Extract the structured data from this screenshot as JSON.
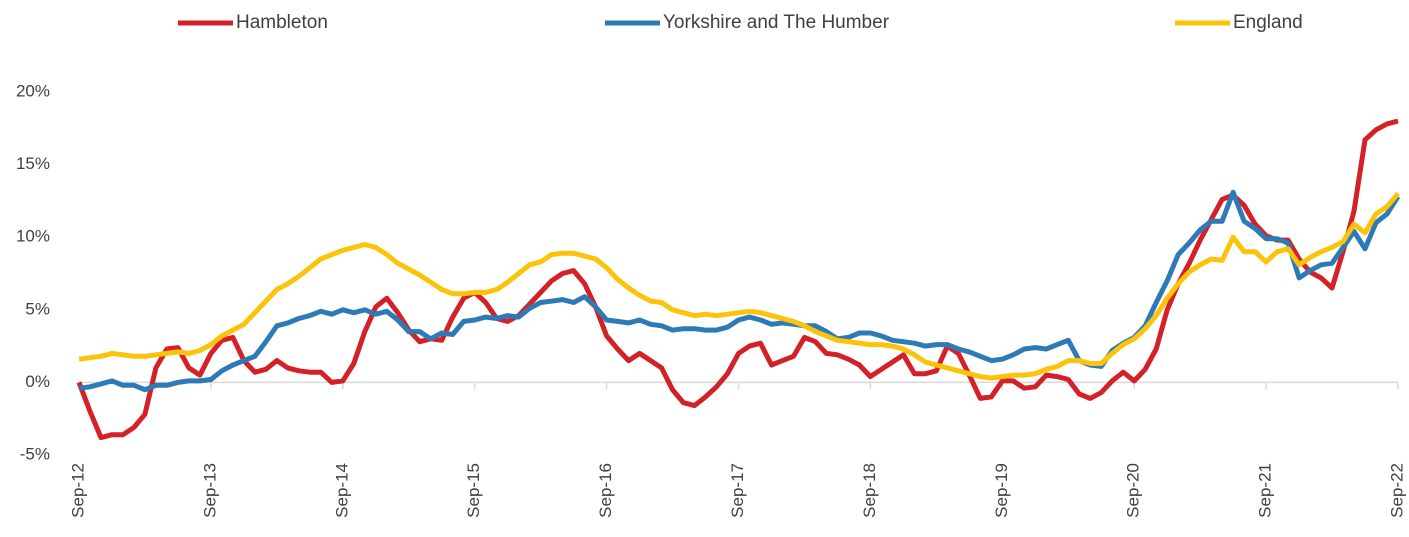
{
  "chart_data": {
    "type": "line",
    "categories": [
      "Sep-12",
      null,
      null,
      null,
      null,
      null,
      null,
      null,
      null,
      null,
      null,
      null,
      "Sep-13",
      null,
      null,
      null,
      null,
      null,
      null,
      null,
      null,
      null,
      null,
      null,
      "Sep-14",
      null,
      null,
      null,
      null,
      null,
      null,
      null,
      null,
      null,
      null,
      null,
      "Sep-15",
      null,
      null,
      null,
      null,
      null,
      null,
      null,
      null,
      null,
      null,
      null,
      "Sep-16",
      null,
      null,
      null,
      null,
      null,
      null,
      null,
      null,
      null,
      null,
      null,
      "Sep-17",
      null,
      null,
      null,
      null,
      null,
      null,
      null,
      null,
      null,
      null,
      null,
      "Sep-18",
      null,
      null,
      null,
      null,
      null,
      null,
      null,
      null,
      null,
      null,
      null,
      "Sep-19",
      null,
      null,
      null,
      null,
      null,
      null,
      null,
      null,
      null,
      null,
      null,
      "Sep-20",
      null,
      null,
      null,
      null,
      null,
      null,
      null,
      null,
      null,
      null,
      null,
      "Sep-21",
      null,
      null,
      null,
      null,
      null,
      null,
      null,
      null,
      null,
      null,
      null,
      "Sep-22"
    ],
    "series": [
      {
        "name": "Hambleton",
        "color": "#d42027",
        "values": [
          0,
          -2.0,
          -3.8,
          -3.6,
          -3.6,
          -3.1,
          -2.2,
          1.0,
          2.3,
          2.4,
          1.0,
          0.5,
          2.0,
          2.9,
          3.1,
          1.5,
          0.7,
          0.9,
          1.5,
          1.0,
          0.8,
          0.7,
          0.7,
          0.0,
          0.1,
          1.3,
          3.5,
          5.2,
          5.8,
          4.8,
          3.6,
          2.8,
          3.0,
          2.9,
          4.5,
          5.8,
          6.2,
          5.5,
          4.4,
          4.2,
          4.6,
          5.4,
          6.2,
          7.0,
          7.5,
          7.7,
          6.8,
          5.2,
          3.2,
          2.3,
          1.5,
          2.0,
          1.5,
          1.0,
          -0.5,
          -1.4,
          -1.6,
          -1.0,
          -0.3,
          0.6,
          2.0,
          2.5,
          2.7,
          1.2,
          1.5,
          1.8,
          3.1,
          2.8,
          2.0,
          1.9,
          1.6,
          1.2,
          0.4,
          0.9,
          1.4,
          1.9,
          0.6,
          0.6,
          0.8,
          2.5,
          2.0,
          0.5,
          -1.1,
          -1.0,
          0.1,
          0.1,
          -0.4,
          -0.3,
          0.5,
          0.4,
          0.2,
          -0.8,
          -1.1,
          -0.7,
          0.1,
          0.7,
          0.1,
          0.9,
          2.3,
          5.0,
          6.8,
          8.2,
          9.8,
          11.2,
          12.6,
          12.9,
          12.2,
          10.9,
          10.1,
          9.8,
          9.8,
          8.5,
          7.6,
          7.2,
          6.5,
          9.0,
          11.8,
          16.7,
          17.4,
          17.8,
          18.0
        ]
      },
      {
        "name": "Yorkshire and The Humber",
        "color": "#2e7ab6",
        "values": [
          -0.4,
          -0.3,
          -0.1,
          0.1,
          -0.2,
          -0.2,
          -0.5,
          -0.2,
          -0.2,
          0.0,
          0.1,
          0.1,
          0.2,
          0.8,
          1.2,
          1.5,
          1.8,
          2.8,
          3.9,
          4.1,
          4.4,
          4.6,
          4.9,
          4.7,
          5.0,
          4.8,
          5.0,
          4.7,
          4.9,
          4.3,
          3.5,
          3.5,
          3.0,
          3.4,
          3.3,
          4.2,
          4.3,
          4.5,
          4.4,
          4.6,
          4.5,
          5.1,
          5.5,
          5.6,
          5.7,
          5.5,
          5.9,
          5.2,
          4.3,
          4.2,
          4.1,
          4.3,
          4.0,
          3.9,
          3.6,
          3.7,
          3.7,
          3.6,
          3.6,
          3.8,
          4.3,
          4.5,
          4.3,
          4.0,
          4.1,
          4.0,
          3.9,
          3.9,
          3.5,
          3.0,
          3.1,
          3.4,
          3.4,
          3.2,
          2.9,
          2.8,
          2.7,
          2.5,
          2.6,
          2.6,
          2.3,
          2.1,
          1.8,
          1.5,
          1.6,
          1.9,
          2.3,
          2.4,
          2.3,
          2.6,
          2.9,
          1.5,
          1.2,
          1.1,
          2.2,
          2.7,
          3.1,
          3.9,
          5.5,
          7.0,
          8.8,
          9.6,
          10.5,
          11.1,
          11.1,
          13.1,
          11.1,
          10.6,
          9.9,
          9.9,
          9.6,
          7.2,
          7.7,
          8.1,
          8.2,
          9.3,
          10.4,
          9.2,
          11.0,
          11.6,
          12.8
        ]
      },
      {
        "name": "England",
        "color": "#fcc30b",
        "values": [
          1.6,
          1.7,
          1.8,
          2.0,
          1.9,
          1.8,
          1.8,
          1.9,
          2.0,
          2.1,
          2.0,
          2.2,
          2.6,
          3.2,
          3.6,
          4.0,
          4.8,
          5.6,
          6.4,
          6.8,
          7.3,
          7.9,
          8.5,
          8.8,
          9.1,
          9.3,
          9.5,
          9.3,
          8.8,
          8.2,
          7.8,
          7.4,
          6.9,
          6.4,
          6.1,
          6.1,
          6.2,
          6.2,
          6.4,
          6.9,
          7.5,
          8.1,
          8.3,
          8.8,
          8.9,
          8.9,
          8.7,
          8.5,
          7.9,
          7.1,
          6.5,
          6.0,
          5.6,
          5.5,
          5.0,
          4.8,
          4.6,
          4.7,
          4.6,
          4.7,
          4.8,
          4.9,
          4.8,
          4.6,
          4.4,
          4.2,
          3.9,
          3.5,
          3.2,
          2.9,
          2.8,
          2.7,
          2.6,
          2.6,
          2.5,
          2.3,
          1.9,
          1.4,
          1.2,
          1.0,
          0.8,
          0.6,
          0.4,
          0.3,
          0.4,
          0.5,
          0.5,
          0.6,
          0.9,
          1.1,
          1.5,
          1.5,
          1.3,
          1.3,
          2.0,
          2.6,
          3.0,
          3.7,
          4.6,
          5.8,
          6.8,
          7.6,
          8.1,
          8.5,
          8.4,
          10.0,
          9.0,
          9.0,
          8.3,
          9.0,
          9.2,
          8.1,
          8.6,
          9.0,
          9.3,
          9.7,
          10.9,
          10.3,
          11.6,
          12.1,
          13.0
        ]
      }
    ],
    "ylim": [
      -5,
      20
    ],
    "yticks": [
      {
        "value": -5,
        "label": "-5%"
      },
      {
        "value": 0,
        "label": "0%"
      },
      {
        "value": 5,
        "label": "5%"
      },
      {
        "value": 10,
        "label": "10%"
      },
      {
        "value": 15,
        "label": "15%"
      },
      {
        "value": 20,
        "label": "20%"
      }
    ],
    "grid": false
  }
}
